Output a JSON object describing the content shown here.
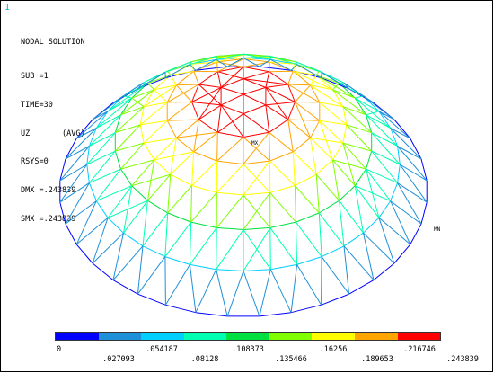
{
  "window_number": "1",
  "info": {
    "title": "NODAL SOLUTION",
    "lines": [
      "SUB =1",
      "TIME=30",
      "UZ       (AVG)",
      "RSYS=0",
      "DMX =.243839",
      "SMX =.243839"
    ]
  },
  "markers": {
    "max": "MX",
    "min": "MN"
  },
  "contour_colors": [
    "#0000ff",
    "#1e90d8",
    "#00cfff",
    "#00ffb0",
    "#00e040",
    "#80ff00",
    "#ffff00",
    "#ffa500",
    "#ff0000"
  ],
  "legend": {
    "top_labels": [
      "0",
      ".054187",
      ".108373",
      ".16256",
      ".216746"
    ],
    "bottom_labels": [
      ".027093",
      ".08128",
      ".135466",
      ".189653",
      ".243839"
    ]
  }
}
